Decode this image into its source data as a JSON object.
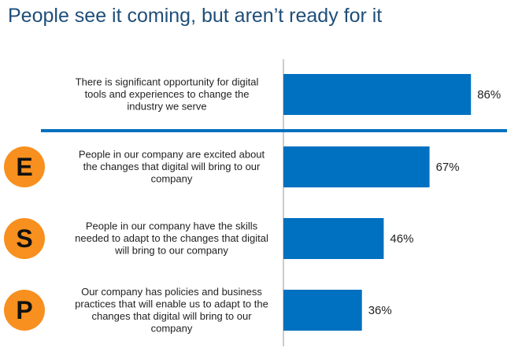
{
  "page": {
    "title": "People see it coming, but aren’t ready for it"
  },
  "colors": {
    "bar": "#0070c0",
    "divider": "#0070c0",
    "badge": "#f7901e",
    "axis": "#9a9a9a",
    "title": "#1f4e79"
  },
  "chart_data": {
    "type": "bar",
    "orientation": "horizontal",
    "categories": [
      [
        "There is significant opportunity for digital",
        "tools and experiences to change the",
        "industry we serve"
      ],
      [
        "People in our company are excited about",
        "the changes that digital will bring to our",
        "company"
      ],
      [
        "People in our company have the skills",
        "needed to adapt to the changes that digital",
        "will bring to our company"
      ],
      [
        "Our company has policies and business",
        "practices that will enable us to adapt to the",
        "changes that digital will bring to our",
        "company"
      ]
    ],
    "values": [
      86,
      67,
      46,
      36
    ],
    "data_labels": [
      "86%",
      "67%",
      "46%",
      "36%"
    ],
    "badges": [
      "",
      "E",
      "S",
      "P"
    ],
    "xlim": [
      0,
      100
    ],
    "grid": false,
    "legend": "none"
  }
}
